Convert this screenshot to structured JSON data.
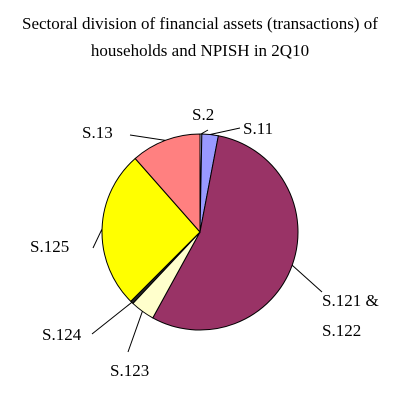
{
  "chart_data": {
    "type": "pie",
    "title": "Sectoral division of financial assets (transactions) of households and NPISH in 2Q10",
    "categories": [
      "S.2",
      "S.11",
      "S.121 & S.122",
      "S.123",
      "S.124",
      "S.125",
      "S.13"
    ],
    "values": [
      0.3,
      2.7,
      55,
      4,
      0.5,
      26,
      11.5
    ],
    "colors": [
      "#ccccff",
      "#9999ff",
      "#993366",
      "#ffffcc",
      "#222222",
      "#ffff00",
      "#ff8080"
    ]
  }
}
